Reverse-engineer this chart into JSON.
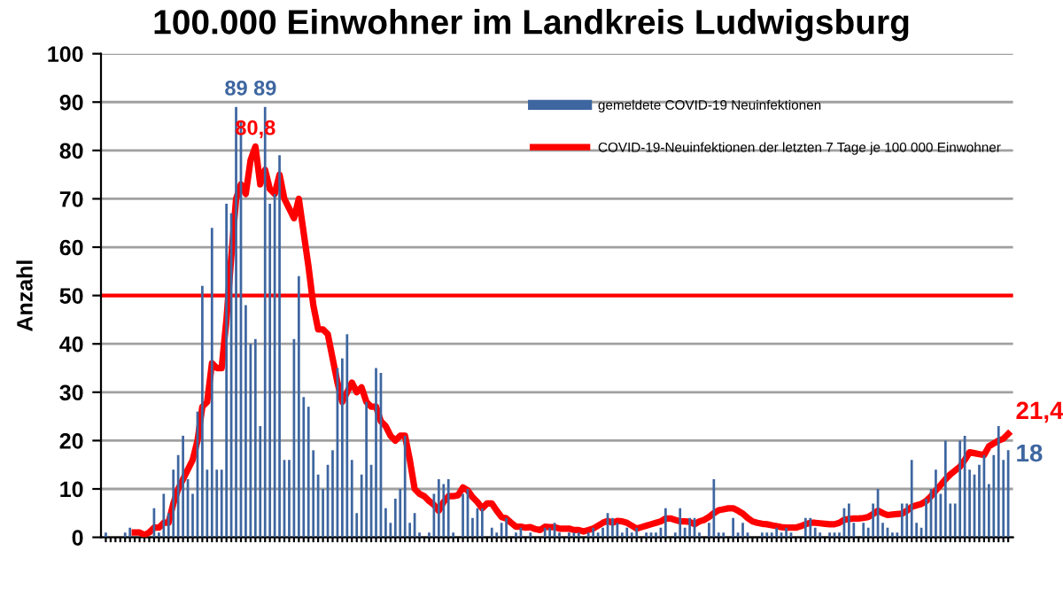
{
  "chart_data": {
    "type": "bar",
    "title": "100.000 Einwohner im Landkreis Ludwigsburg",
    "ylabel": "Anzahl",
    "categories": [
      null,
      null,
      null,
      null,
      null,
      null,
      null,
      null,
      null,
      null,
      null,
      null,
      null,
      null,
      null,
      null,
      null,
      null,
      null,
      null,
      null,
      null,
      null,
      null,
      null,
      null,
      null,
      null,
      null,
      null,
      null,
      null,
      null,
      null,
      null,
      null,
      null,
      null,
      null,
      null,
      null,
      null,
      null,
      null,
      null,
      null,
      null,
      null,
      null,
      null,
      null,
      null,
      null,
      null,
      null,
      null,
      null,
      null,
      null,
      null,
      null,
      null,
      null,
      null,
      null,
      null,
      null,
      null,
      null,
      null,
      null,
      null,
      null,
      null,
      null,
      null,
      null,
      null,
      null,
      null,
      null,
      null,
      null,
      null,
      null,
      null,
      null,
      null,
      null,
      null,
      null,
      null,
      null,
      null,
      null,
      null,
      null,
      null,
      null,
      null,
      null,
      null,
      null,
      null,
      null,
      null,
      null,
      null,
      null,
      null,
      null,
      null,
      null,
      null,
      null,
      null,
      null,
      null,
      null,
      null,
      null,
      null,
      null,
      null,
      null,
      null,
      null,
      null,
      null,
      null,
      null,
      null,
      null,
      null,
      null,
      null,
      null,
      null,
      null,
      null,
      null,
      null,
      null,
      null,
      null,
      null,
      null,
      null,
      null,
      null,
      null,
      null,
      null,
      null,
      null,
      null,
      null,
      null,
      null,
      null,
      null,
      null,
      null,
      null,
      null,
      null,
      null,
      null,
      null,
      null,
      null,
      null,
      null,
      null,
      null,
      null,
      null,
      null,
      null,
      null,
      null,
      null,
      null,
      null,
      null,
      null,
      null,
      null
    ],
    "series": [
      {
        "name": "gemeldete COVID-19 Neuinfektionen",
        "color": "#3e66a0",
        "values": [
          1,
          0,
          0,
          0,
          1,
          2,
          0,
          0,
          0,
          0,
          6,
          1,
          9,
          5,
          14,
          17,
          21,
          12,
          9,
          26,
          52,
          14,
          64,
          14,
          14,
          69,
          67,
          89,
          86,
          48,
          40,
          41,
          23,
          89,
          69,
          71,
          79,
          16,
          16,
          41,
          54,
          29,
          27,
          18,
          13,
          10,
          15,
          18,
          35,
          37,
          42,
          16,
          5,
          13,
          28,
          15,
          35,
          34,
          6,
          3,
          8,
          10,
          21,
          3,
          5,
          1,
          0,
          1,
          9,
          12,
          11,
          12,
          1,
          0,
          9,
          10,
          4,
          6,
          6,
          0,
          2,
          1,
          3,
          4,
          0,
          1,
          2,
          0,
          1,
          0,
          0,
          2,
          2,
          3,
          1,
          0,
          1,
          1,
          1,
          0,
          1,
          2,
          1,
          2,
          5,
          4,
          3,
          1,
          2,
          1,
          2,
          0,
          1,
          1,
          1,
          2,
          6,
          0,
          1,
          6,
          2,
          4,
          4,
          1,
          0,
          3,
          12,
          1,
          1,
          0,
          4,
          1,
          3,
          1,
          0,
          0,
          1,
          1,
          1,
          2,
          1,
          2,
          1,
          0,
          0,
          4,
          4,
          2,
          1,
          0,
          1,
          1,
          1,
          6,
          7,
          3,
          0,
          3,
          2,
          7,
          10,
          3,
          2,
          1,
          1,
          7,
          7,
          16,
          3,
          2,
          8,
          10,
          14,
          9,
          20,
          7,
          7,
          20,
          21,
          14,
          13,
          15,
          17,
          11,
          17,
          23,
          16,
          18
        ],
        "value_labels": [
          null,
          null,
          null,
          null,
          null,
          null,
          null,
          null,
          null,
          null,
          null,
          null,
          null,
          null,
          null,
          null,
          null,
          null,
          null,
          null,
          null,
          null,
          null,
          null,
          null,
          null,
          null,
          "89",
          null,
          null,
          null,
          null,
          null,
          "89",
          null,
          null,
          null,
          null,
          null,
          null,
          null,
          null,
          null,
          null,
          null,
          null,
          null,
          null,
          null,
          null,
          null,
          null,
          null,
          null,
          null,
          null,
          null,
          null,
          null,
          null,
          null,
          null,
          null,
          null,
          null,
          null,
          null,
          null,
          null,
          null,
          null,
          null,
          null,
          null,
          null,
          null,
          null,
          null,
          null,
          null,
          null,
          null,
          null,
          null,
          null,
          null,
          null,
          null,
          null,
          null,
          null,
          null,
          null,
          null,
          null,
          null,
          null,
          null,
          null,
          null,
          null,
          null,
          null,
          null,
          null,
          null,
          null,
          null,
          null,
          null,
          null,
          null,
          null,
          null,
          null,
          null,
          null,
          null,
          null,
          null,
          null,
          null,
          null,
          null,
          null,
          null,
          null,
          null,
          null,
          null,
          null,
          null,
          null,
          null,
          null,
          null,
          null,
          null,
          null,
          null,
          null,
          null,
          null,
          null,
          null,
          null,
          null,
          null,
          null,
          null,
          null,
          null,
          null,
          null,
          null,
          null,
          null,
          null,
          null,
          null,
          null,
          null,
          null,
          null,
          null,
          null,
          null,
          null,
          null,
          null,
          null,
          null,
          null,
          null,
          null,
          null,
          null,
          null,
          null,
          null,
          null,
          null,
          null,
          null,
          null,
          null,
          null,
          "18"
        ]
      },
      {
        "type": "line",
        "name": "COVID-19-Neuinfektionen der letzten 7 Tage je 100 000 Einwohner",
        "color": "#ff0000",
        "values": [
          null,
          null,
          null,
          null,
          null,
          null,
          1,
          1,
          0.5,
          1,
          2,
          2,
          3,
          3,
          7,
          10,
          12,
          14,
          16,
          20,
          27,
          28,
          36,
          35,
          35,
          45,
          58,
          70,
          73,
          71,
          78,
          80.8,
          73,
          76,
          72,
          71,
          75,
          70,
          68,
          66,
          70,
          63,
          56,
          48,
          43,
          43,
          42,
          37,
          32,
          28,
          30,
          32,
          30,
          31,
          28,
          27,
          27,
          24,
          23,
          21,
          20,
          21,
          21,
          16,
          10,
          9,
          8.5,
          7.5,
          6.7,
          5.5,
          7.3,
          8.5,
          8.5,
          8.7,
          10.3,
          9.7,
          8.3,
          7.3,
          6,
          7,
          7,
          5.5,
          4.2,
          3.9,
          3,
          2.2,
          2.2,
          2,
          2.1,
          1.7,
          1.5,
          2.2,
          2.1,
          2.1,
          1.8,
          1.8,
          1.8,
          1.5,
          1.5,
          1.2,
          1.5,
          1.8,
          2.4,
          3,
          3.4,
          3,
          3.4,
          3.3,
          3,
          2.4,
          1.8,
          2.1,
          2.4,
          2.7,
          3,
          3.3,
          3.9,
          3.9,
          3.6,
          3.3,
          3.3,
          3.2,
          2.7,
          3.3,
          3.6,
          4.2,
          5,
          5.6,
          5.8,
          6,
          6,
          5.5,
          4.9,
          4,
          3.3,
          3,
          2.8,
          2.7,
          2.5,
          2.3,
          2.1,
          2,
          2,
          2,
          2.3,
          2.7,
          3,
          3,
          2.9,
          2.8,
          2.7,
          2.7,
          3,
          3.6,
          3.8,
          3.9,
          3.9,
          4,
          4.2,
          4.8,
          5.5,
          5,
          4.6,
          4.7,
          4.8,
          4.9,
          5.5,
          6.3,
          6.6,
          6.9,
          7.5,
          8.5,
          9.7,
          10.8,
          12,
          13,
          13.8,
          14.6,
          16,
          17.6,
          17.4,
          17.2,
          17,
          18.8,
          19.4,
          20,
          20.4,
          21.4
        ],
        "value_labels": [
          null,
          null,
          null,
          null,
          null,
          null,
          null,
          null,
          null,
          null,
          null,
          null,
          null,
          null,
          null,
          null,
          null,
          null,
          null,
          null,
          null,
          null,
          null,
          null,
          null,
          null,
          null,
          null,
          null,
          null,
          null,
          "80,8",
          null,
          null,
          null,
          null,
          null,
          null,
          null,
          null,
          null,
          null,
          null,
          null,
          null,
          null,
          null,
          null,
          null,
          null,
          null,
          null,
          null,
          null,
          null,
          null,
          null,
          null,
          null,
          null,
          null,
          null,
          null,
          null,
          null,
          null,
          null,
          null,
          null,
          null,
          null,
          null,
          null,
          null,
          null,
          null,
          null,
          null,
          null,
          null,
          null,
          null,
          null,
          null,
          null,
          null,
          null,
          null,
          null,
          null,
          null,
          null,
          null,
          null,
          null,
          null,
          null,
          null,
          null,
          null,
          null,
          null,
          null,
          null,
          null,
          null,
          null,
          null,
          null,
          null,
          null,
          null,
          null,
          null,
          null,
          null,
          null,
          null,
          null,
          null,
          null,
          null,
          null,
          null,
          null,
          null,
          null,
          null,
          null,
          null,
          null,
          null,
          null,
          null,
          null,
          null,
          null,
          null,
          null,
          null,
          null,
          null,
          null,
          null,
          null,
          null,
          null,
          null,
          null,
          null,
          null,
          null,
          null,
          null,
          null,
          null,
          null,
          null,
          null,
          null,
          null,
          null,
          null,
          null,
          null,
          null,
          null,
          null,
          null,
          null,
          null,
          null,
          null,
          null,
          null,
          null,
          null,
          null,
          null,
          null,
          null,
          null,
          null,
          null,
          null,
          null,
          null,
          "21,4"
        ]
      }
    ],
    "ylim": [
      0,
      100
    ],
    "yticks": [
      0,
      10,
      20,
      30,
      40,
      50,
      60,
      70,
      80,
      90,
      100
    ],
    "grid": "y",
    "legend": "top right",
    "ref_lines": [
      {
        "axis": "y",
        "value": 50,
        "color": "#ff0000"
      }
    ]
  }
}
